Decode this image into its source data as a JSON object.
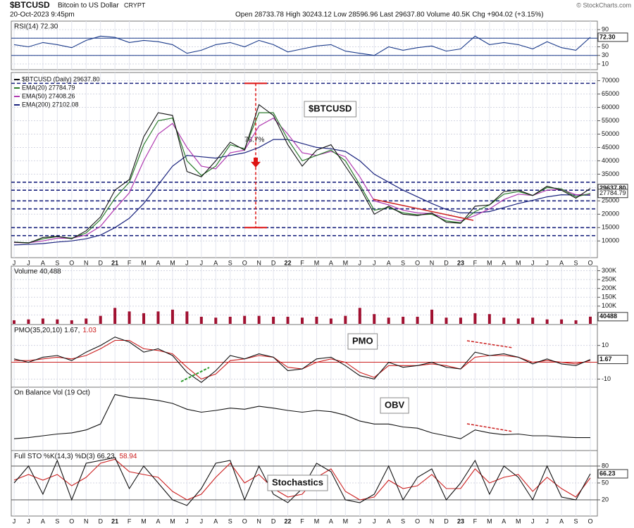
{
  "header": {
    "symbol": "$BTCUSD",
    "name": "Bitcoin to US Dollar",
    "exchange": "CRYPT",
    "date": "20-Oct-2023 9:45pm",
    "quote": "Open 28733.78 High 30243.12 Low 28596.96 Last 29637.80 Volume 40.5K Chg +904.02 (+3.15%)",
    "copyright": "© StockCharts.com"
  },
  "chart_data": [
    {
      "type": "line",
      "title": "RSI(14) 72.30",
      "color": "#1a3a8a",
      "values": [
        55,
        50,
        60,
        55,
        48,
        65,
        75,
        72,
        60,
        65,
        62,
        55,
        35,
        42,
        55,
        60,
        50,
        65,
        55,
        38,
        45,
        52,
        55,
        40,
        35,
        30,
        50,
        42,
        48,
        52,
        40,
        45,
        75,
        55,
        60,
        55,
        45,
        62,
        48,
        42,
        72.3
      ],
      "ylim": [
        0,
        100
      ],
      "yticks": [
        90,
        70,
        50,
        30,
        10
      ],
      "reference_lines": [
        70,
        30
      ],
      "last_labels": [
        "72.30"
      ]
    },
    {
      "type": "line",
      "categories": [
        "J",
        "J",
        "A",
        "S",
        "O",
        "N",
        "D",
        "21",
        "F",
        "M",
        "A",
        "M",
        "J",
        "J",
        "A",
        "S",
        "O",
        "N",
        "D",
        "22",
        "F",
        "M",
        "A",
        "M",
        "J",
        "J",
        "A",
        "S",
        "O",
        "N",
        "D",
        "23",
        "F",
        "M",
        "A",
        "M",
        "J",
        "J",
        "A",
        "S",
        "O"
      ],
      "series": [
        {
          "name": "$BTCUSD (Daily) 29637.80",
          "color": "#111111",
          "values": [
            9500,
            9200,
            11300,
            11700,
            10800,
            13800,
            19000,
            29000,
            33000,
            49000,
            58000,
            57000,
            36000,
            34000,
            40000,
            47000,
            44000,
            61000,
            57000,
            46000,
            38000,
            44000,
            46000,
            38000,
            30000,
            20000,
            23000,
            20000,
            19500,
            20500,
            17000,
            16600,
            23000,
            23500,
            28500,
            29000,
            27000,
            30500,
            29000,
            26000,
            29637.8
          ]
        },
        {
          "name": "EMA(20) 27784.79",
          "color": "#2a7a2a",
          "values": [
            9600,
            9300,
            10800,
            11600,
            11000,
            13000,
            18000,
            26000,
            32000,
            46000,
            55000,
            56000,
            40000,
            34500,
            38000,
            46000,
            44500,
            58000,
            58000,
            48000,
            40000,
            42000,
            44000,
            40000,
            31000,
            21500,
            22500,
            20500,
            19800,
            20000,
            17500,
            16800,
            21000,
            23500,
            27500,
            28500,
            27000,
            30000,
            29500,
            26500,
            27784.79
          ]
        },
        {
          "name": "EMA(50) 27408.26",
          "color": "#b03ab0",
          "values": [
            9400,
            9300,
            10000,
            11000,
            11000,
            12200,
            15500,
            22000,
            28000,
            40000,
            50000,
            54000,
            45000,
            38000,
            37000,
            43000,
            44000,
            53000,
            56000,
            50000,
            43000,
            42000,
            43500,
            41500,
            34000,
            25000,
            23500,
            21500,
            20500,
            20200,
            18500,
            17500,
            19500,
            22000,
            25500,
            27500,
            27000,
            29000,
            29300,
            27300,
            27408.26
          ]
        },
        {
          "name": "EMA(200) 27102.08",
          "color": "#1a237e",
          "values": [
            8500,
            8700,
            9000,
            9600,
            10000,
            10800,
            12200,
            15000,
            18500,
            24000,
            31000,
            38000,
            42000,
            41500,
            41000,
            42000,
            43000,
            45000,
            48000,
            48000,
            46500,
            45000,
            44500,
            43500,
            40000,
            35000,
            32000,
            29000,
            26500,
            24000,
            21800,
            20500,
            20500,
            21000,
            22500,
            24000,
            25200,
            26500,
            27300,
            27200,
            27102.08
          ]
        }
      ],
      "ylim": [
        4000,
        72000
      ],
      "yticks": [
        70000,
        65000,
        60000,
        55000,
        50000,
        45000,
        40000,
        35000,
        30000,
        25000,
        20000,
        15000,
        10000
      ],
      "levels": [
        69000,
        32000,
        29000,
        25000,
        22000,
        15000,
        12000
      ],
      "drawdown": {
        "from": 69000,
        "to": 15000,
        "label": "78.7%"
      },
      "annotation": "$BTCUSD",
      "last_labels": [
        "29637.80",
        "27784.79"
      ]
    },
    {
      "type": "bar",
      "title": "Volume 40,488",
      "color": "#a01030",
      "values": [
        20000,
        25000,
        30000,
        25000,
        20000,
        30000,
        45000,
        90000,
        70000,
        60000,
        70000,
        80000,
        70000,
        40000,
        35000,
        40000,
        45000,
        45000,
        40000,
        40000,
        35000,
        40000,
        30000,
        45000,
        90000,
        55000,
        35000,
        40000,
        40000,
        80000,
        35000,
        35000,
        60000,
        55000,
        35000,
        30000,
        35000,
        25000,
        25000,
        20000,
        40488
      ],
      "ylim": [
        0,
        310000
      ],
      "yticks": [
        {
          "value": 300000,
          "label": "300K"
        },
        {
          "value": 250000,
          "label": "250K"
        },
        {
          "value": 200000,
          "label": "200K"
        },
        {
          "value": 150000,
          "label": "150K"
        },
        {
          "value": 100000,
          "label": "100K"
        },
        {
          "value": 50000,
          "label": "50K"
        }
      ],
      "last_labels": [
        "40488"
      ]
    },
    {
      "type": "line",
      "series": [
        {
          "name": "PMO(35,20,10) 1.67,",
          "color": "#111111",
          "values": [
            2,
            0,
            3,
            4,
            1,
            6,
            10,
            15,
            12,
            6,
            8,
            4,
            -6,
            -12,
            -5,
            4,
            2,
            5,
            3,
            -5,
            -4,
            2,
            3,
            -2,
            -8,
            -10,
            0,
            -3,
            -2,
            0,
            -3,
            -4,
            6,
            4,
            5,
            3,
            -1,
            2,
            -1,
            -2,
            1.67
          ]
        },
        {
          "name": "1.03",
          "color": "#cc2020",
          "values": [
            1,
            1,
            2,
            3,
            2,
            4,
            8,
            13,
            13,
            8,
            7,
            5,
            -3,
            -10,
            -7,
            1,
            2,
            4,
            3,
            -3,
            -4,
            0,
            2,
            0,
            -6,
            -9,
            -2,
            -2,
            -2,
            -1,
            -2,
            -4,
            3,
            4,
            4,
            3,
            0,
            1,
            0,
            -1,
            1.03
          ]
        }
      ],
      "ylim": [
        -14,
        22
      ],
      "yticks": [
        10,
        -10
      ],
      "reference_lines": [
        0
      ],
      "annotation": "PMO",
      "last_labels": [
        "1.67"
      ]
    },
    {
      "type": "line",
      "title": "On Balance Vol (19 Oct)",
      "color": "#111111",
      "values": [
        20,
        22,
        25,
        28,
        30,
        35,
        45,
        95,
        90,
        88,
        85,
        80,
        70,
        65,
        68,
        72,
        70,
        75,
        72,
        68,
        65,
        68,
        66,
        60,
        50,
        45,
        45,
        40,
        38,
        30,
        25,
        20,
        35,
        30,
        27,
        28,
        25,
        25,
        23,
        22,
        22
      ],
      "ylim": [
        0,
        105
      ],
      "annotation": "OBV"
    },
    {
      "type": "line",
      "categories": [
        "J",
        "J",
        "A",
        "S",
        "O",
        "N",
        "D",
        "21",
        "F",
        "M",
        "A",
        "M",
        "J",
        "J",
        "A",
        "S",
        "O",
        "N",
        "D",
        "22",
        "F",
        "M",
        "A",
        "M",
        "J",
        "J",
        "A",
        "S",
        "O",
        "N",
        "D",
        "23",
        "F",
        "M",
        "A",
        "M",
        "J",
        "J",
        "A",
        "S",
        "O"
      ],
      "series": [
        {
          "name": "Full STO %K(14,3) %D(3) 66.23,",
          "color": "#111111",
          "values": [
            50,
            80,
            30,
            90,
            20,
            85,
            90,
            95,
            40,
            80,
            50,
            20,
            10,
            40,
            85,
            90,
            20,
            80,
            30,
            15,
            40,
            85,
            70,
            20,
            15,
            30,
            80,
            20,
            60,
            75,
            20,
            50,
            90,
            30,
            80,
            60,
            20,
            80,
            25,
            20,
            66.23
          ]
        },
        {
          "name": "58.94",
          "color": "#cc2020",
          "values": [
            55,
            65,
            55,
            65,
            45,
            60,
            85,
            92,
            70,
            65,
            60,
            35,
            20,
            30,
            60,
            85,
            50,
            65,
            40,
            25,
            30,
            60,
            75,
            35,
            20,
            25,
            55,
            40,
            45,
            65,
            40,
            40,
            75,
            50,
            60,
            65,
            35,
            60,
            40,
            25,
            58.94
          ]
        }
      ],
      "ylim": [
        0,
        100
      ],
      "yticks": [
        80,
        50,
        20
      ],
      "reference_lines": [
        80,
        20
      ],
      "annotation": "Stochastics",
      "last_labels": [
        "66.23"
      ]
    }
  ]
}
